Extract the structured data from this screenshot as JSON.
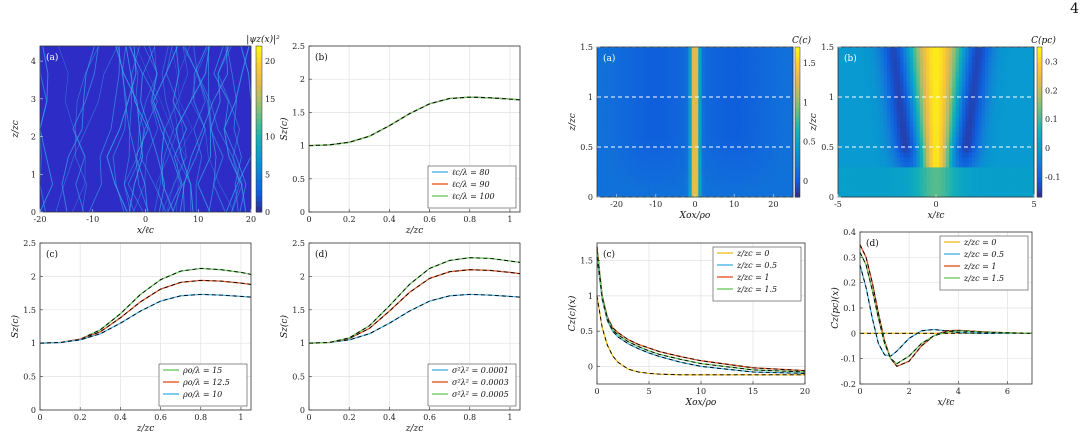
{
  "page_number": "4",
  "chart_data": [
    {
      "id": "L_a",
      "type": "heatmap",
      "panel_label": "(a)",
      "xlabel": "x/ℓc",
      "ylabel": "z/zc",
      "colorbar_label": "|ψz(x)|²",
      "xlim": [
        -20,
        20
      ],
      "ylim": [
        0,
        4.4
      ],
      "xticks": [
        -20,
        -10,
        0,
        10,
        20
      ],
      "yticks": [
        0,
        1,
        2,
        3,
        4
      ],
      "clim": [
        0,
        22
      ],
      "cticks": [
        0,
        5,
        10,
        15,
        20
      ],
      "colors": {
        "background": "#2d2cc7",
        "ridge": "#3aa3e8",
        "bright": "#c0e64a"
      }
    },
    {
      "id": "L_b",
      "type": "line",
      "panel_label": "(b)",
      "xlabel": "z/zc",
      "ylabel": "Sz(c)",
      "xlim": [
        0,
        1.05
      ],
      "ylim": [
        0,
        2.5
      ],
      "xticks": [
        0,
        0.2,
        0.4,
        0.6,
        0.8,
        1
      ],
      "yticks": [
        0,
        0.5,
        1,
        1.5,
        2,
        2.5
      ],
      "legend_position": "bottom-right",
      "series": [
        {
          "name": "ℓc/λ = 80",
          "color": "#4db3e8",
          "x": [
            0,
            0.1,
            0.2,
            0.3,
            0.4,
            0.5,
            0.6,
            0.7,
            0.8,
            0.9,
            1.0,
            1.05
          ],
          "y": [
            1,
            1.01,
            1.05,
            1.14,
            1.3,
            1.48,
            1.63,
            1.71,
            1.73,
            1.72,
            1.7,
            1.69
          ]
        },
        {
          "name": "ℓc/λ = 90",
          "color": "#e55a2b",
          "x": [
            0,
            0.1,
            0.2,
            0.3,
            0.4,
            0.5,
            0.6,
            0.7,
            0.8,
            0.9,
            1.0,
            1.05
          ],
          "y": [
            1,
            1.01,
            1.05,
            1.14,
            1.3,
            1.48,
            1.63,
            1.71,
            1.73,
            1.72,
            1.7,
            1.69
          ]
        },
        {
          "name": "ℓc/λ = 100",
          "color": "#6ecb63",
          "x": [
            0,
            0.1,
            0.2,
            0.3,
            0.4,
            0.5,
            0.6,
            0.7,
            0.8,
            0.9,
            1.0,
            1.05
          ],
          "y": [
            1,
            1.01,
            1.05,
            1.14,
            1.3,
            1.48,
            1.63,
            1.71,
            1.73,
            1.72,
            1.7,
            1.69
          ]
        }
      ]
    },
    {
      "id": "L_c",
      "type": "line",
      "panel_label": "(c)",
      "xlabel": "z/zc",
      "ylabel": "Sz(c)",
      "xlim": [
        0,
        1.05
      ],
      "ylim": [
        0,
        2.5
      ],
      "xticks": [
        0,
        0.2,
        0.4,
        0.6,
        0.8,
        1
      ],
      "yticks": [
        0,
        0.5,
        1,
        1.5,
        2,
        2.5
      ],
      "legend_position": "bottom-right",
      "series": [
        {
          "name": "ρo/λ = 15",
          "color": "#6ecb63",
          "x": [
            0,
            0.1,
            0.2,
            0.3,
            0.4,
            0.5,
            0.6,
            0.7,
            0.8,
            0.9,
            1.0,
            1.05
          ],
          "y": [
            1,
            1.01,
            1.06,
            1.2,
            1.44,
            1.73,
            1.95,
            2.08,
            2.12,
            2.1,
            2.06,
            2.03
          ]
        },
        {
          "name": "ρo/λ = 12.5",
          "color": "#e55a2b",
          "x": [
            0,
            0.1,
            0.2,
            0.3,
            0.4,
            0.5,
            0.6,
            0.7,
            0.8,
            0.9,
            1.0,
            1.05
          ],
          "y": [
            1,
            1.01,
            1.06,
            1.17,
            1.38,
            1.62,
            1.81,
            1.91,
            1.94,
            1.93,
            1.9,
            1.88
          ]
        },
        {
          "name": "ρo/λ = 10",
          "color": "#4db3e8",
          "x": [
            0,
            0.1,
            0.2,
            0.3,
            0.4,
            0.5,
            0.6,
            0.7,
            0.8,
            0.9,
            1.0,
            1.05
          ],
          "y": [
            1,
            1.01,
            1.05,
            1.14,
            1.3,
            1.48,
            1.63,
            1.71,
            1.73,
            1.72,
            1.7,
            1.69
          ]
        }
      ]
    },
    {
      "id": "L_d",
      "type": "line",
      "panel_label": "(d)",
      "xlabel": "z/zc",
      "ylabel": "Sz(c)",
      "xlim": [
        0,
        1.05
      ],
      "ylim": [
        0,
        2.5
      ],
      "xticks": [
        0,
        0.2,
        0.4,
        0.6,
        0.8,
        1
      ],
      "yticks": [
        0,
        0.5,
        1,
        1.5,
        2,
        2.5
      ],
      "legend_position": "bottom-right",
      "series": [
        {
          "name": "σ²λ² = 0.0001",
          "color": "#4db3e8",
          "x": [
            0,
            0.1,
            0.2,
            0.3,
            0.4,
            0.5,
            0.6,
            0.7,
            0.8,
            0.9,
            1.0,
            1.05
          ],
          "y": [
            1,
            1.01,
            1.05,
            1.14,
            1.3,
            1.48,
            1.63,
            1.71,
            1.73,
            1.72,
            1.7,
            1.69
          ]
        },
        {
          "name": "σ²λ² = 0.0003",
          "color": "#e55a2b",
          "x": [
            0,
            0.1,
            0.2,
            0.3,
            0.4,
            0.5,
            0.6,
            0.7,
            0.8,
            0.9,
            1.0,
            1.05
          ],
          "y": [
            1,
            1.01,
            1.07,
            1.22,
            1.48,
            1.76,
            1.97,
            2.07,
            2.1,
            2.09,
            2.06,
            2.04
          ]
        },
        {
          "name": "σ²λ² = 0.0005",
          "color": "#6ecb63",
          "x": [
            0,
            0.1,
            0.2,
            0.3,
            0.4,
            0.5,
            0.6,
            0.7,
            0.8,
            0.9,
            1.0,
            1.05
          ],
          "y": [
            1,
            1.01,
            1.08,
            1.26,
            1.56,
            1.88,
            2.12,
            2.24,
            2.28,
            2.27,
            2.23,
            2.21
          ]
        }
      ]
    },
    {
      "id": "R_a",
      "type": "heatmap",
      "panel_label": "(a)",
      "xlabel": "Xox/ρo",
      "ylabel": "z/zc",
      "colorbar_label": "C(c)",
      "xlim": [
        -25,
        25
      ],
      "ylim": [
        0,
        1.5
      ],
      "xticks": [
        -20,
        -10,
        0,
        10,
        20
      ],
      "yticks": [
        0,
        0.5,
        1,
        1.5
      ],
      "clim": [
        -0.2,
        1.7
      ],
      "cticks": [
        0,
        0.5,
        1,
        1.5
      ],
      "dashed_levels": [
        0,
        0.5,
        1,
        1.5
      ]
    },
    {
      "id": "R_b",
      "type": "heatmap",
      "panel_label": "(b)",
      "xlabel": "x/ℓc",
      "ylabel": "z/zc",
      "colorbar_label": "C(pc)",
      "xlim": [
        -5,
        5
      ],
      "ylim": [
        0,
        1.5
      ],
      "xticks": [
        -5,
        0,
        5
      ],
      "yticks": [
        0,
        0.5,
        1,
        1.5
      ],
      "clim": [
        -0.17,
        0.35
      ],
      "cticks": [
        -0.1,
        0,
        0.1,
        0.2,
        0.3
      ],
      "dashed_levels": [
        0.5,
        1,
        1.5
      ]
    },
    {
      "id": "R_c",
      "type": "line",
      "panel_label": "(c)",
      "xlabel": "Xox/ρo",
      "ylabel": "Cz(c)(x)",
      "xlim": [
        0,
        20
      ],
      "ylim": [
        -0.25,
        1.75
      ],
      "xticks": [
        0,
        5,
        10,
        15,
        20
      ],
      "yticks": [
        0,
        0.5,
        1,
        1.5
      ],
      "legend_position": "top-right",
      "series": [
        {
          "name": "z/zc = 0",
          "color": "#f2c12e",
          "x": [
            0,
            0.5,
            1,
            1.5,
            2,
            3,
            4,
            5,
            6,
            8,
            10,
            15,
            20
          ],
          "y": [
            1,
            0.55,
            0.3,
            0.15,
            0.06,
            -0.04,
            -0.08,
            -0.1,
            -0.11,
            -0.12,
            -0.12,
            -0.12,
            -0.12
          ]
        },
        {
          "name": "z/zc = 0.5",
          "color": "#4db3e8",
          "x": [
            0,
            0.5,
            1,
            1.5,
            2,
            3,
            4,
            5,
            6,
            8,
            10,
            15,
            20
          ],
          "y": [
            1.55,
            0.95,
            0.65,
            0.5,
            0.42,
            0.32,
            0.25,
            0.19,
            0.14,
            0.06,
            0.0,
            -0.08,
            -0.1
          ]
        },
        {
          "name": "z/zc = 1",
          "color": "#e55a2b",
          "x": [
            0,
            0.5,
            1,
            1.5,
            2,
            3,
            4,
            5,
            6,
            8,
            10,
            15,
            20
          ],
          "y": [
            1.7,
            1.0,
            0.7,
            0.55,
            0.48,
            0.38,
            0.31,
            0.26,
            0.21,
            0.14,
            0.08,
            -0.02,
            -0.06
          ]
        },
        {
          "name": "z/zc = 1.5",
          "color": "#6ecb63",
          "x": [
            0,
            0.5,
            1,
            1.5,
            2,
            3,
            4,
            5,
            6,
            8,
            10,
            15,
            20
          ],
          "y": [
            1.65,
            0.98,
            0.68,
            0.52,
            0.45,
            0.35,
            0.28,
            0.22,
            0.17,
            0.1,
            0.04,
            -0.05,
            -0.08
          ]
        }
      ]
    },
    {
      "id": "R_d",
      "type": "line",
      "panel_label": "(d)",
      "xlabel": "x/ℓc",
      "ylabel": "Cz(pc)(x)",
      "xlim": [
        0,
        7
      ],
      "ylim": [
        -0.2,
        0.4
      ],
      "xticks": [
        0,
        2,
        4,
        6
      ],
      "yticks": [
        -0.2,
        -0.1,
        0,
        0.1,
        0.2,
        0.3,
        0.4
      ],
      "legend_position": "top-right",
      "series": [
        {
          "name": "z/zc = 0",
          "color": "#f2c12e",
          "x": [
            0,
            1,
            2,
            3,
            4,
            5,
            6,
            7
          ],
          "y": [
            0,
            0,
            0,
            0,
            0,
            0,
            0,
            0
          ]
        },
        {
          "name": "z/zc = 0.5",
          "color": "#4db3e8",
          "x": [
            0,
            0.25,
            0.5,
            0.75,
            1,
            1.25,
            1.5,
            2,
            2.5,
            3,
            3.5,
            4,
            5,
            6,
            7
          ],
          "y": [
            0.27,
            0.18,
            0.06,
            -0.04,
            -0.085,
            -0.09,
            -0.07,
            -0.02,
            0.01,
            0.015,
            0.01,
            0.003,
            0,
            0,
            0
          ]
        },
        {
          "name": "z/zc = 1",
          "color": "#e55a2b",
          "x": [
            0,
            0.25,
            0.5,
            0.75,
            1,
            1.25,
            1.5,
            2,
            2.5,
            3,
            3.5,
            4,
            5,
            6,
            7
          ],
          "y": [
            0.35,
            0.3,
            0.2,
            0.08,
            -0.03,
            -0.1,
            -0.13,
            -0.11,
            -0.05,
            -0.01,
            0.01,
            0.012,
            0.006,
            0.002,
            0
          ]
        },
        {
          "name": "z/zc = 1.5",
          "color": "#6ecb63",
          "x": [
            0,
            0.25,
            0.5,
            0.75,
            1,
            1.25,
            1.5,
            2,
            2.5,
            3,
            3.5,
            4,
            5,
            6,
            7
          ],
          "y": [
            0.32,
            0.27,
            0.17,
            0.06,
            -0.04,
            -0.1,
            -0.12,
            -0.09,
            -0.04,
            -0.01,
            0.005,
            0.01,
            0.005,
            0.002,
            0
          ]
        }
      ]
    }
  ]
}
